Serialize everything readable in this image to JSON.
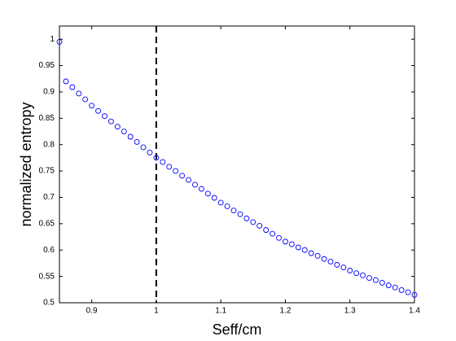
{
  "chart_data": {
    "type": "scatter",
    "xlabel": "Seff/cm",
    "ylabel": "normalized entropy",
    "x": [
      0.85,
      0.86,
      0.87,
      0.88,
      0.89,
      0.9,
      0.91,
      0.92,
      0.93,
      0.94,
      0.95,
      0.96,
      0.97,
      0.98,
      0.99,
      1.0,
      1.01,
      1.02,
      1.03,
      1.04,
      1.05,
      1.06,
      1.07,
      1.08,
      1.09,
      1.1,
      1.11,
      1.12,
      1.13,
      1.14,
      1.15,
      1.16,
      1.17,
      1.18,
      1.19,
      1.2,
      1.21,
      1.22,
      1.23,
      1.24,
      1.25,
      1.26,
      1.27,
      1.28,
      1.29,
      1.3,
      1.31,
      1.32,
      1.33,
      1.34,
      1.35,
      1.36,
      1.37,
      1.38,
      1.39,
      1.4
    ],
    "values": [
      0.995,
      0.92,
      0.909,
      0.897,
      0.886,
      0.874,
      0.864,
      0.854,
      0.844,
      0.834,
      0.825,
      0.815,
      0.805,
      0.795,
      0.785,
      0.775,
      0.767,
      0.758,
      0.75,
      0.741,
      0.733,
      0.724,
      0.716,
      0.707,
      0.699,
      0.69,
      0.683,
      0.675,
      0.668,
      0.66,
      0.653,
      0.646,
      0.638,
      0.631,
      0.623,
      0.616,
      0.611,
      0.605,
      0.6,
      0.594,
      0.589,
      0.583,
      0.578,
      0.572,
      0.567,
      0.561,
      0.556,
      0.552,
      0.547,
      0.543,
      0.538,
      0.533,
      0.529,
      0.524,
      0.52,
      0.515
    ],
    "color": "#0000ff",
    "vlines": [
      1
    ],
    "xlim": [
      0.85,
      1.4
    ],
    "xticks": [
      0.9,
      1,
      1.1,
      1.2,
      1.3,
      1.4
    ],
    "ylim": [
      0.5,
      1.025
    ],
    "yticks": [
      0.5,
      0.55,
      0.6,
      0.65,
      0.7,
      0.75,
      0.8,
      0.85,
      0.9,
      0.95,
      1
    ],
    "grid": false
  }
}
